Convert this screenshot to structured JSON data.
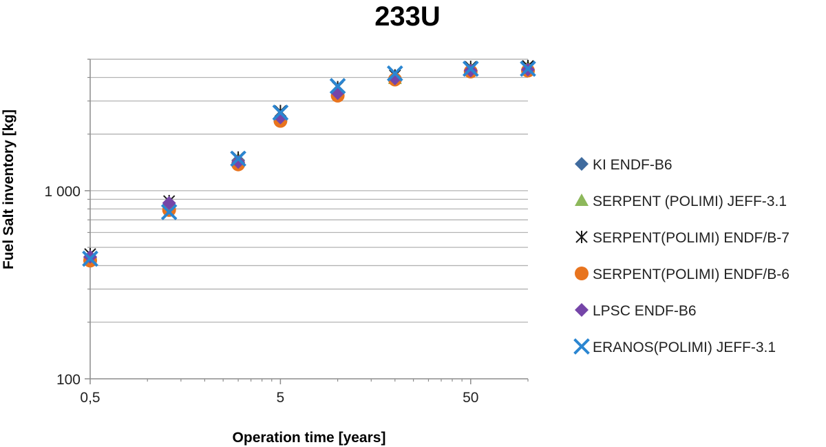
{
  "chart_data": {
    "type": "scatter",
    "title": "233U",
    "xlabel": "Operation time [years]",
    "ylabel": "Fuel Salt inventory [kg]",
    "xscale": "log",
    "yscale": "log",
    "xlim": [
      0.5,
      100
    ],
    "ylim": [
      100,
      5000
    ],
    "x_ticks": [
      {
        "value": 0.5,
        "label": "0,5"
      },
      {
        "value": 5,
        "label": "5"
      },
      {
        "value": 50,
        "label": "50"
      }
    ],
    "y_ticks": [
      {
        "value": 100,
        "label": "100"
      },
      {
        "value": 1000,
        "label": "1 000"
      }
    ],
    "grid": true,
    "legend_position": "right",
    "series": [
      {
        "name": "KI ENDF-B6",
        "marker": "diamond",
        "color": "#3f6b9e",
        "x": [
          0.5,
          1.3,
          3,
          5,
          10,
          20,
          50,
          100
        ],
        "y": [
          440,
          840,
          1450,
          2450,
          3350,
          3950,
          4350,
          4350
        ]
      },
      {
        "name": "SERPENT (POLIMI) JEFF-3.1",
        "marker": "triangle",
        "color": "#8db85b",
        "x": [
          0.5,
          1.3,
          3,
          5,
          10,
          20,
          50,
          100
        ],
        "y": [
          450,
          850,
          1470,
          2500,
          3400,
          3950,
          4450,
          4550
        ]
      },
      {
        "name": "SERPENT(POLIMI) ENDF/B-7",
        "marker": "asterisk",
        "color": "#1a1a1a",
        "x": [
          0.5,
          1.3,
          3,
          5,
          10,
          20,
          50,
          100
        ],
        "y": [
          460,
          880,
          1500,
          2650,
          3550,
          4100,
          4550,
          4600
        ]
      },
      {
        "name": "SERPENT(POLIMI) ENDF/B-6",
        "marker": "circle",
        "color": "#e8741e",
        "x": [
          0.5,
          1.3,
          3,
          5,
          10,
          20,
          50,
          100
        ],
        "y": [
          425,
          790,
          1380,
          2350,
          3200,
          3900,
          4300,
          4350
        ]
      },
      {
        "name": "LPSC ENDF-B6",
        "marker": "diamond",
        "color": "#7545a8",
        "x": [
          0.5,
          1.3,
          3,
          5,
          10,
          20,
          50,
          100
        ],
        "y": [
          445,
          860,
          1420,
          2450,
          3300,
          3950,
          4350,
          4400
        ]
      },
      {
        "name": "ERANOS(POLIMI) JEFF-3.1",
        "marker": "x",
        "color": "#2b86d1",
        "x": [
          0.5,
          1.3,
          3,
          5,
          10,
          20,
          50,
          100
        ],
        "y": [
          435,
          770,
          1480,
          2600,
          3600,
          4200,
          4450,
          4450
        ]
      }
    ]
  }
}
